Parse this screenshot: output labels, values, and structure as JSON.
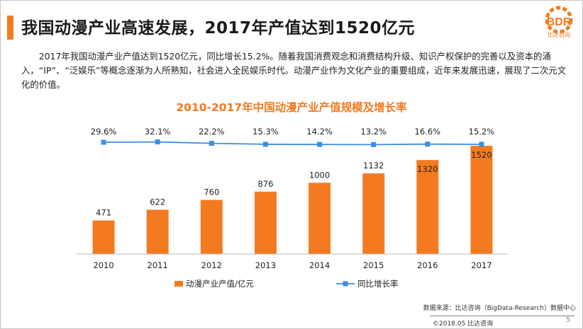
{
  "title": "我国动漫产业高速发展，2017年产值达到1520亿元",
  "logo": {
    "text": "BDR",
    "subtext": "比达咨询",
    "color": "#f47a20"
  },
  "intro": "2017年我国动漫产业产值达到1520亿元，同比增长15.2%。随着我国消费观念和消费结构升级、知识产权保护的完善以及资本的涌入，“IP”、“泛娱乐”等概念逐渐为人所熟知，社会进入全民娱乐时代。动漫产业作为文化产业的重要组成，近年来发展迅速，展现了二次元文化的价值。",
  "chart_data": {
    "type": "bar+line",
    "title": "2010-2017年中国动漫产业产值规模及增长率",
    "categories": [
      "2010",
      "2011",
      "2012",
      "2013",
      "2014",
      "2015",
      "2016",
      "2017"
    ],
    "series": [
      {
        "name": "动漫产业产值/亿元",
        "type": "bar",
        "color": "#f47a20",
        "values": [
          471,
          622,
          760,
          876,
          1000,
          1132,
          1320,
          1520
        ],
        "labels": [
          "471",
          "622",
          "760",
          "876",
          "1000",
          "1132",
          "1320",
          "1520"
        ]
      },
      {
        "name": "同比增长率",
        "type": "line",
        "color": "#3a8ee6",
        "values": [
          29.6,
          32.1,
          22.2,
          15.3,
          14.2,
          13.2,
          16.6,
          15.2
        ],
        "labels": [
          "29.6%",
          "32.1%",
          "22.2%",
          "15.3%",
          "14.2%",
          "13.2%",
          "16.6%",
          "15.2%"
        ]
      }
    ],
    "bar_ylim": [
      0,
      1600
    ],
    "line_ylim": [
      0,
      100
    ],
    "legend": "bottom-center",
    "grid": false
  },
  "footer": {
    "source": "数据来源：比达咨询（BigData-Research）数据中心",
    "copyright": "©2018.05  比达咨询",
    "page": "5"
  }
}
